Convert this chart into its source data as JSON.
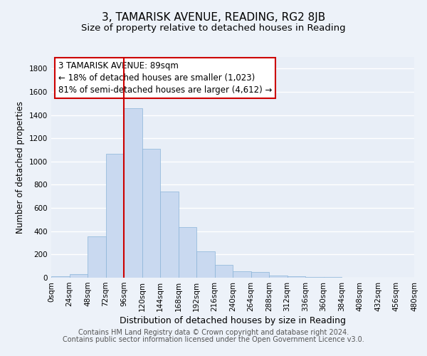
{
  "title": "3, TAMARISK AVENUE, READING, RG2 8JB",
  "subtitle": "Size of property relative to detached houses in Reading",
  "xlabel": "Distribution of detached houses by size in Reading",
  "ylabel": "Number of detached properties",
  "bar_edges": [
    0,
    24,
    48,
    72,
    96,
    120,
    144,
    168,
    192,
    216,
    240,
    264,
    288,
    312,
    336,
    360,
    384,
    408,
    432,
    456,
    480
  ],
  "bar_heights": [
    15,
    30,
    355,
    1065,
    1460,
    1110,
    740,
    435,
    225,
    110,
    57,
    47,
    20,
    15,
    8,
    5,
    3,
    2,
    1,
    1
  ],
  "bar_color": "#c9d9f0",
  "bar_edgecolor": "#8ab4d8",
  "vline_x": 96,
  "vline_color": "#cc0000",
  "annotation_line1": "3 TAMARISK AVENUE: 89sqm",
  "annotation_line2": "← 18% of detached houses are smaller (1,023)",
  "annotation_line3": "81% of semi-detached houses are larger (4,612) →",
  "annotation_box_facecolor": "white",
  "annotation_box_edgecolor": "#cc0000",
  "ylim": [
    0,
    1900
  ],
  "yticks": [
    0,
    200,
    400,
    600,
    800,
    1000,
    1200,
    1400,
    1600,
    1800
  ],
  "xtick_labels": [
    "0sqm",
    "24sqm",
    "48sqm",
    "72sqm",
    "96sqm",
    "120sqm",
    "144sqm",
    "168sqm",
    "192sqm",
    "216sqm",
    "240sqm",
    "264sqm",
    "288sqm",
    "312sqm",
    "336sqm",
    "360sqm",
    "384sqm",
    "408sqm",
    "432sqm",
    "456sqm",
    "480sqm"
  ],
  "footer_line1": "Contains HM Land Registry data © Crown copyright and database right 2024.",
  "footer_line2": "Contains public sector information licensed under the Open Government Licence v3.0.",
  "background_color": "#edf2f9",
  "plot_background_color": "#e8eef7",
  "grid_color": "white",
  "title_fontsize": 11,
  "subtitle_fontsize": 9.5,
  "xlabel_fontsize": 9,
  "ylabel_fontsize": 8.5,
  "tick_fontsize": 7.5,
  "footer_fontsize": 7,
  "annotation_fontsize": 8.5
}
